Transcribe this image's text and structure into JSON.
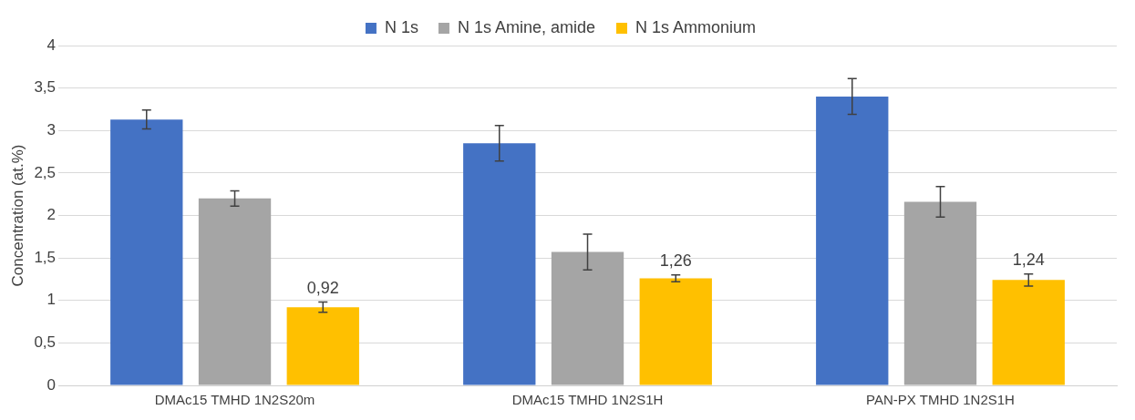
{
  "chart_data": {
    "type": "bar",
    "ylabel": "Concentration (at.%)",
    "categories": [
      "DMAc15 TMHD 1N2S20m",
      "DMAc15 TMHD 1N2S1H",
      "PAN-PX TMHD 1N2S1H"
    ],
    "series": [
      {
        "name": "N 1s",
        "color": "#4472c4",
        "values": [
          3.13,
          2.85,
          3.4
        ],
        "errors": [
          0.11,
          0.21,
          0.21
        ]
      },
      {
        "name": "N 1s Amine, amide",
        "color": "#a5a5a5",
        "values": [
          2.2,
          1.57,
          2.16
        ],
        "errors": [
          0.09,
          0.21,
          0.18
        ]
      },
      {
        "name": "N 1s Ammonium",
        "color": "#ffc000",
        "values": [
          0.92,
          1.26,
          1.24
        ],
        "errors": [
          0.06,
          0.04,
          0.07
        ],
        "value_labels": [
          "0,92",
          "1,26",
          "1,24"
        ]
      }
    ],
    "ylim": [
      0,
      4
    ],
    "yticks": [
      0,
      {
        "value": 0.5,
        "label": "0,5"
      },
      1,
      {
        "value": 1.5,
        "label": "1,5"
      },
      2,
      {
        "value": 2.5,
        "label": "2,5"
      },
      3,
      {
        "value": 3.5,
        "label": "3,5"
      },
      4
    ],
    "grid": "y",
    "legend": "top"
  }
}
